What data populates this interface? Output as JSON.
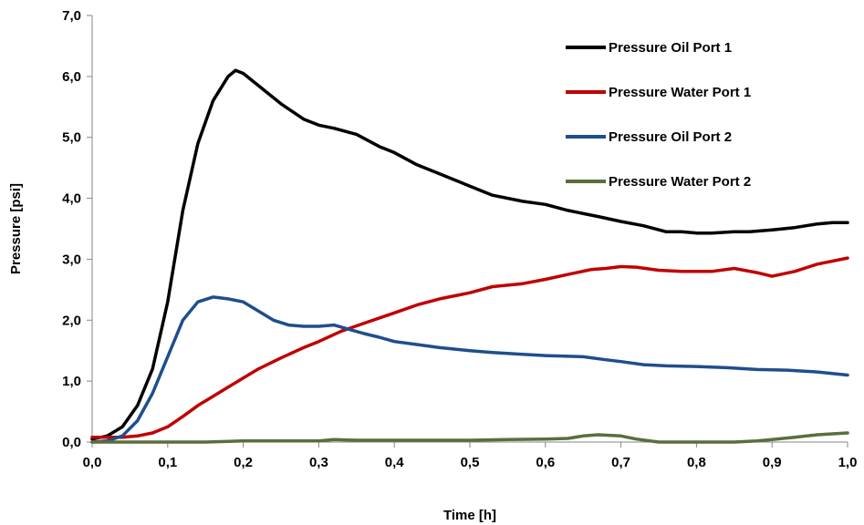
{
  "chart_data": {
    "type": "line",
    "title": "",
    "xlabel": "Time [h]",
    "ylabel": "Pressure [psi]",
    "xlim": [
      0,
      1.0
    ],
    "ylim": [
      0,
      7.0
    ],
    "x_ticks": [
      0,
      0.1,
      0.2,
      0.3,
      0.4,
      0.5,
      0.6,
      0.7,
      0.8,
      0.9,
      1.0
    ],
    "x_tick_labels": [
      "0,0",
      "0,1",
      "0,2",
      "0,3",
      "0,4",
      "0,5",
      "0,6",
      "0,7",
      "0,8",
      "0,9",
      "1,0"
    ],
    "y_ticks": [
      0,
      1,
      2,
      3,
      4,
      5,
      6,
      7
    ],
    "y_tick_labels": [
      "0,0",
      "1,0",
      "2,0",
      "3,0",
      "4,0",
      "5,0",
      "6,0",
      "7,0"
    ],
    "grid": false,
    "legend_position": "top-right",
    "series": [
      {
        "name": "Pressure Oil Port 1",
        "color": "#000000",
        "x": [
          0,
          0.02,
          0.04,
          0.06,
          0.08,
          0.1,
          0.12,
          0.14,
          0.16,
          0.18,
          0.19,
          0.2,
          0.22,
          0.25,
          0.28,
          0.3,
          0.32,
          0.35,
          0.38,
          0.4,
          0.43,
          0.46,
          0.5,
          0.53,
          0.57,
          0.6,
          0.63,
          0.67,
          0.7,
          0.73,
          0.76,
          0.78,
          0.8,
          0.82,
          0.85,
          0.87,
          0.9,
          0.93,
          0.96,
          0.98,
          1.0
        ],
        "y": [
          0.05,
          0.1,
          0.25,
          0.6,
          1.2,
          2.3,
          3.8,
          4.9,
          5.6,
          6.0,
          6.1,
          6.05,
          5.85,
          5.55,
          5.3,
          5.2,
          5.15,
          5.05,
          4.85,
          4.75,
          4.55,
          4.4,
          4.2,
          4.05,
          3.95,
          3.9,
          3.8,
          3.7,
          3.62,
          3.55,
          3.45,
          3.45,
          3.43,
          3.43,
          3.45,
          3.45,
          3.48,
          3.52,
          3.58,
          3.6,
          3.6
        ]
      },
      {
        "name": "Pressure Water Port 1",
        "color": "#c00000",
        "x": [
          0,
          0.02,
          0.04,
          0.06,
          0.08,
          0.1,
          0.12,
          0.14,
          0.16,
          0.18,
          0.2,
          0.22,
          0.25,
          0.28,
          0.3,
          0.33,
          0.36,
          0.4,
          0.43,
          0.46,
          0.5,
          0.53,
          0.57,
          0.6,
          0.63,
          0.66,
          0.68,
          0.7,
          0.72,
          0.75,
          0.78,
          0.8,
          0.82,
          0.85,
          0.88,
          0.9,
          0.93,
          0.96,
          1.0
        ],
        "y": [
          0.08,
          0.08,
          0.08,
          0.1,
          0.15,
          0.25,
          0.42,
          0.6,
          0.75,
          0.9,
          1.05,
          1.2,
          1.38,
          1.55,
          1.65,
          1.82,
          1.95,
          2.12,
          2.25,
          2.35,
          2.45,
          2.55,
          2.6,
          2.67,
          2.75,
          2.83,
          2.85,
          2.88,
          2.87,
          2.82,
          2.8,
          2.8,
          2.8,
          2.85,
          2.78,
          2.72,
          2.8,
          2.92,
          3.02
        ]
      },
      {
        "name": "Pressure Oil Port 2",
        "color": "#1f4e8c",
        "x": [
          0,
          0.02,
          0.04,
          0.06,
          0.08,
          0.1,
          0.12,
          0.14,
          0.16,
          0.18,
          0.2,
          0.22,
          0.24,
          0.26,
          0.28,
          0.3,
          0.32,
          0.34,
          0.36,
          0.38,
          0.4,
          0.43,
          0.46,
          0.5,
          0.53,
          0.57,
          0.6,
          0.65,
          0.68,
          0.7,
          0.73,
          0.76,
          0.8,
          0.84,
          0.88,
          0.92,
          0.96,
          1.0
        ],
        "y": [
          0.0,
          0.02,
          0.1,
          0.35,
          0.8,
          1.4,
          2.0,
          2.3,
          2.38,
          2.35,
          2.3,
          2.15,
          2.0,
          1.92,
          1.9,
          1.9,
          1.92,
          1.85,
          1.78,
          1.72,
          1.65,
          1.6,
          1.55,
          1.5,
          1.47,
          1.44,
          1.42,
          1.4,
          1.35,
          1.32,
          1.27,
          1.25,
          1.24,
          1.22,
          1.19,
          1.18,
          1.15,
          1.1
        ]
      },
      {
        "name": "Pressure Water Port 2",
        "color": "#5a6e3a",
        "x": [
          0,
          0.05,
          0.1,
          0.15,
          0.2,
          0.25,
          0.3,
          0.32,
          0.35,
          0.4,
          0.45,
          0.5,
          0.55,
          0.6,
          0.63,
          0.65,
          0.67,
          0.7,
          0.72,
          0.75,
          0.8,
          0.85,
          0.88,
          0.9,
          0.93,
          0.96,
          1.0
        ],
        "y": [
          0.0,
          0.0,
          0.0,
          0.0,
          0.02,
          0.02,
          0.02,
          0.04,
          0.03,
          0.03,
          0.03,
          0.03,
          0.04,
          0.05,
          0.06,
          0.1,
          0.12,
          0.1,
          0.05,
          0.0,
          0.0,
          0.0,
          0.02,
          0.04,
          0.08,
          0.12,
          0.15
        ]
      }
    ]
  }
}
